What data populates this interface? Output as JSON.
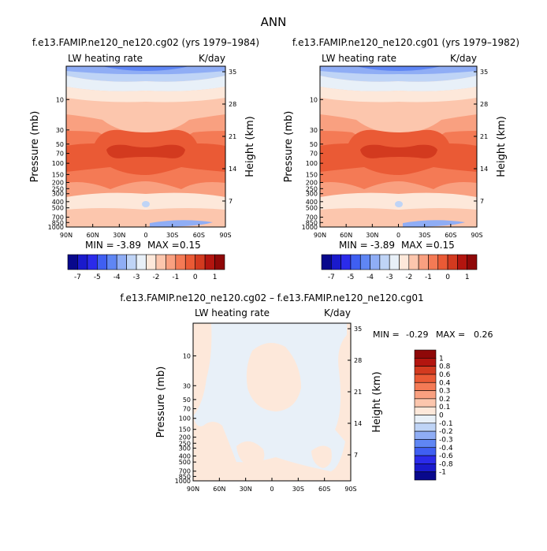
{
  "page": {
    "title": "ANN"
  },
  "colors": {
    "scale": [
      "#08088c",
      "#1a1acc",
      "#2b2bea",
      "#3f5ff2",
      "#5f86f4",
      "#8fadf5",
      "#bfd4f6",
      "#e8f0f8",
      "#fde8da",
      "#fcc6ad",
      "#f9a080",
      "#f47a55",
      "#ea5a35",
      "#d33a1f",
      "#b3150f",
      "#8f0808"
    ]
  },
  "chart_data": [
    {
      "type": "heatmap",
      "title": "f.e13.FAMIP.ne120_ne120.cg02 (yrs 1979–1984)",
      "left_label": "LW heating rate",
      "right_label": "K/day",
      "ylabel": "Pressure (mb)",
      "ylabel_right": "Height (km)",
      "x_ticks": [
        "90N",
        "60N",
        "30N",
        "0",
        "30S",
        "60S",
        "90S"
      ],
      "y_ticks": [
        "10",
        "30",
        "50",
        "70",
        "100",
        "150",
        "200",
        "250",
        "300",
        "400",
        "500",
        "700",
        "850",
        "1000"
      ],
      "y_ticks_right": [
        "35",
        "28",
        "21",
        "14",
        "7"
      ],
      "ylim": [
        1000,
        3
      ],
      "scale": "log",
      "min_label": "MIN =",
      "min_value": "-3.89",
      "max_label": "MAX =",
      "max_value": "0.15",
      "colorbar_labels": [
        "-7",
        "-5",
        "-4",
        "-3",
        "-2",
        "-1",
        "0",
        "1"
      ]
    },
    {
      "type": "heatmap",
      "title": "f.e13.FAMIP.ne120_ne120.cg01 (yrs 1979–1982)",
      "left_label": "LW heating rate",
      "right_label": "K/day",
      "ylabel": "Pressure (mb)",
      "ylabel_right": "Height (km)",
      "x_ticks": [
        "90N",
        "60N",
        "30N",
        "0",
        "30S",
        "60S",
        "90S"
      ],
      "y_ticks": [
        "10",
        "30",
        "50",
        "70",
        "100",
        "150",
        "200",
        "250",
        "300",
        "400",
        "500",
        "700",
        "850",
        "1000"
      ],
      "y_ticks_right": [
        "35",
        "28",
        "21",
        "14",
        "7"
      ],
      "ylim": [
        1000,
        3
      ],
      "scale": "log",
      "min_label": "MIN =",
      "min_value": "-3.89",
      "max_label": "MAX =",
      "max_value": "0.15",
      "colorbar_labels": [
        "-7",
        "-5",
        "-4",
        "-3",
        "-2",
        "-1",
        "0",
        "1"
      ]
    },
    {
      "type": "heatmap",
      "title": "f.e13.FAMIP.ne120_ne120.cg02 – f.e13.FAMIP.ne120_ne120.cg01",
      "left_label": "LW heating rate",
      "right_label": "K/day",
      "ylabel": "Pressure (mb)",
      "ylabel_right": "Height (km)",
      "x_ticks": [
        "90N",
        "60N",
        "30N",
        "0",
        "30S",
        "60S",
        "90S"
      ],
      "y_ticks": [
        "10",
        "30",
        "50",
        "70",
        "100",
        "150",
        "200",
        "250",
        "300",
        "400",
        "500",
        "700",
        "850",
        "1000"
      ],
      "y_ticks_right": [
        "35",
        "28",
        "21",
        "14",
        "7"
      ],
      "ylim": [
        1000,
        3
      ],
      "scale": "log",
      "min_label": "MIN =",
      "min_value": "-0.29",
      "max_label": "MAX =",
      "max_value": "0.26",
      "colorbar_labels": [
        "1",
        "0.8",
        "0.6",
        "0.4",
        "0.3",
        "0.2",
        "0.1",
        "0",
        "-0.1",
        "-0.2",
        "-0.3",
        "-0.4",
        "-0.6",
        "-0.8",
        "-1"
      ]
    }
  ]
}
